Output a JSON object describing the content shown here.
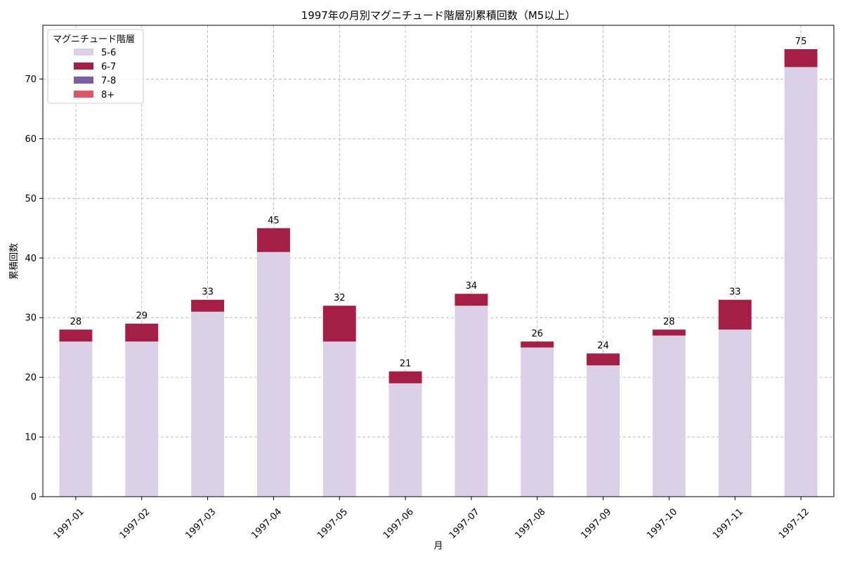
{
  "chart_data": {
    "type": "bar",
    "stacked": true,
    "title": "1997年の月別マグニチュード階層別累積回数（M5以上）",
    "xlabel": "月",
    "ylabel": "累積回数",
    "ylim": [
      0,
      79
    ],
    "yticks": [
      0,
      10,
      20,
      30,
      40,
      50,
      60,
      70
    ],
    "grid": true,
    "legend": {
      "title": "マグニチュード階層",
      "placement": "top-left"
    },
    "categories": [
      "1997-01",
      "1997-02",
      "1997-03",
      "1997-04",
      "1997-05",
      "1997-06",
      "1997-07",
      "1997-08",
      "1997-09",
      "1997-10",
      "1997-11",
      "1997-12"
    ],
    "series": [
      {
        "name": "5-6",
        "color": "#dcd0e6",
        "values": [
          26,
          26,
          31,
          41,
          26,
          19,
          32,
          25,
          22,
          27,
          28,
          72
        ]
      },
      {
        "name": "6-7",
        "color": "#a51e45",
        "values": [
          2,
          3,
          2,
          4,
          6,
          2,
          2,
          1,
          2,
          1,
          5,
          3
        ]
      },
      {
        "name": "7-8",
        "color": "#7a5ea8",
        "values": [
          0,
          0,
          0,
          0,
          0,
          0,
          0,
          0,
          0,
          0,
          0,
          0
        ]
      },
      {
        "name": "8+",
        "color": "#e05565",
        "values": [
          0,
          0,
          0,
          0,
          0,
          0,
          0,
          0,
          0,
          0,
          0,
          0
        ]
      }
    ],
    "totals": [
      28,
      29,
      33,
      45,
      32,
      21,
      34,
      26,
      24,
      28,
      33,
      75
    ]
  }
}
